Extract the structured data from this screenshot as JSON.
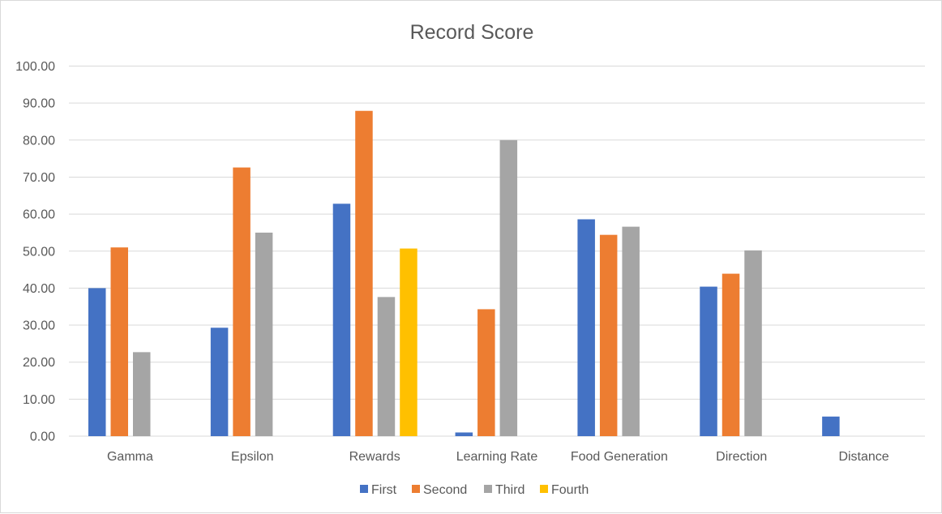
{
  "chart_data": {
    "type": "bar",
    "title": "Record Score",
    "xlabel": "",
    "ylabel": "",
    "ylim": [
      0,
      100
    ],
    "y_ticks": [
      "0.00",
      "10.00",
      "20.00",
      "30.00",
      "40.00",
      "50.00",
      "60.00",
      "70.00",
      "80.00",
      "90.00",
      "100.00"
    ],
    "grid": true,
    "legend": "bottom",
    "categories": [
      "Gamma",
      "Epsilon",
      "Rewards",
      "Learning Rate",
      "Food Generation",
      "Direction",
      "Distance"
    ],
    "series": [
      {
        "name": "First",
        "color": "#4472c4",
        "values": [
          40.0,
          29.3,
          62.8,
          1.0,
          58.6,
          40.4,
          5.3
        ]
      },
      {
        "name": "Second",
        "color": "#ed7d31",
        "values": [
          51.0,
          72.6,
          87.9,
          34.3,
          54.4,
          43.9,
          null
        ]
      },
      {
        "name": "Third",
        "color": "#a5a5a5",
        "values": [
          22.7,
          55.0,
          37.6,
          80.0,
          56.6,
          50.2,
          null
        ]
      },
      {
        "name": "Fourth",
        "color": "#ffc000",
        "values": [
          null,
          null,
          50.7,
          null,
          null,
          null,
          null
        ]
      }
    ]
  }
}
